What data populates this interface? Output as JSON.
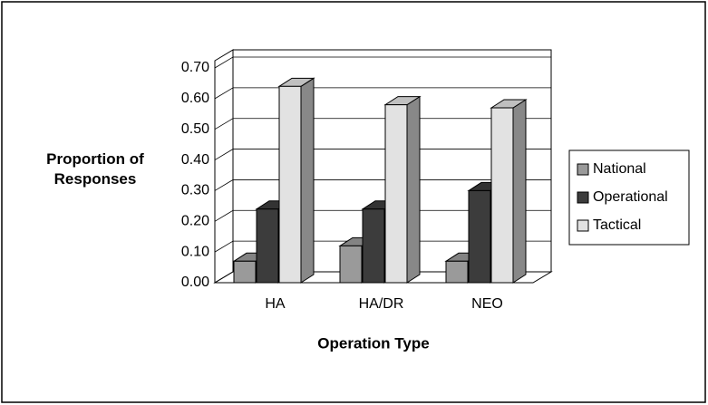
{
  "chart_data": {
    "type": "bar3d",
    "x_label": "Operation Type",
    "y_label": "Proportion of Responses",
    "categories": [
      "HA",
      "HA/DR",
      "NEO"
    ],
    "series": [
      {
        "name": "National",
        "color": "#9a9a9a",
        "values": [
          0.07,
          0.12,
          0.07
        ]
      },
      {
        "name": "Operational",
        "color": "#3c3c3c",
        "values": [
          0.24,
          0.24,
          0.3
        ]
      },
      {
        "name": "Tactical",
        "color": "#e2e2e2",
        "values": [
          0.64,
          0.58,
          0.57
        ]
      }
    ],
    "ylim": [
      0,
      0.7
    ],
    "yticks": [
      {
        "value": 0,
        "label": "0.00"
      },
      {
        "value": 0.1,
        "label": "0.10"
      },
      {
        "value": 0.2,
        "label": "0.20"
      },
      {
        "value": 0.3,
        "label": "0.30"
      },
      {
        "value": 0.4,
        "label": "0.40"
      },
      {
        "value": 0.5,
        "label": "0.50"
      },
      {
        "value": 0.6,
        "label": "0.60"
      },
      {
        "value": 0.7,
        "label": "0.70"
      }
    ],
    "grid": true,
    "legend": "right"
  }
}
